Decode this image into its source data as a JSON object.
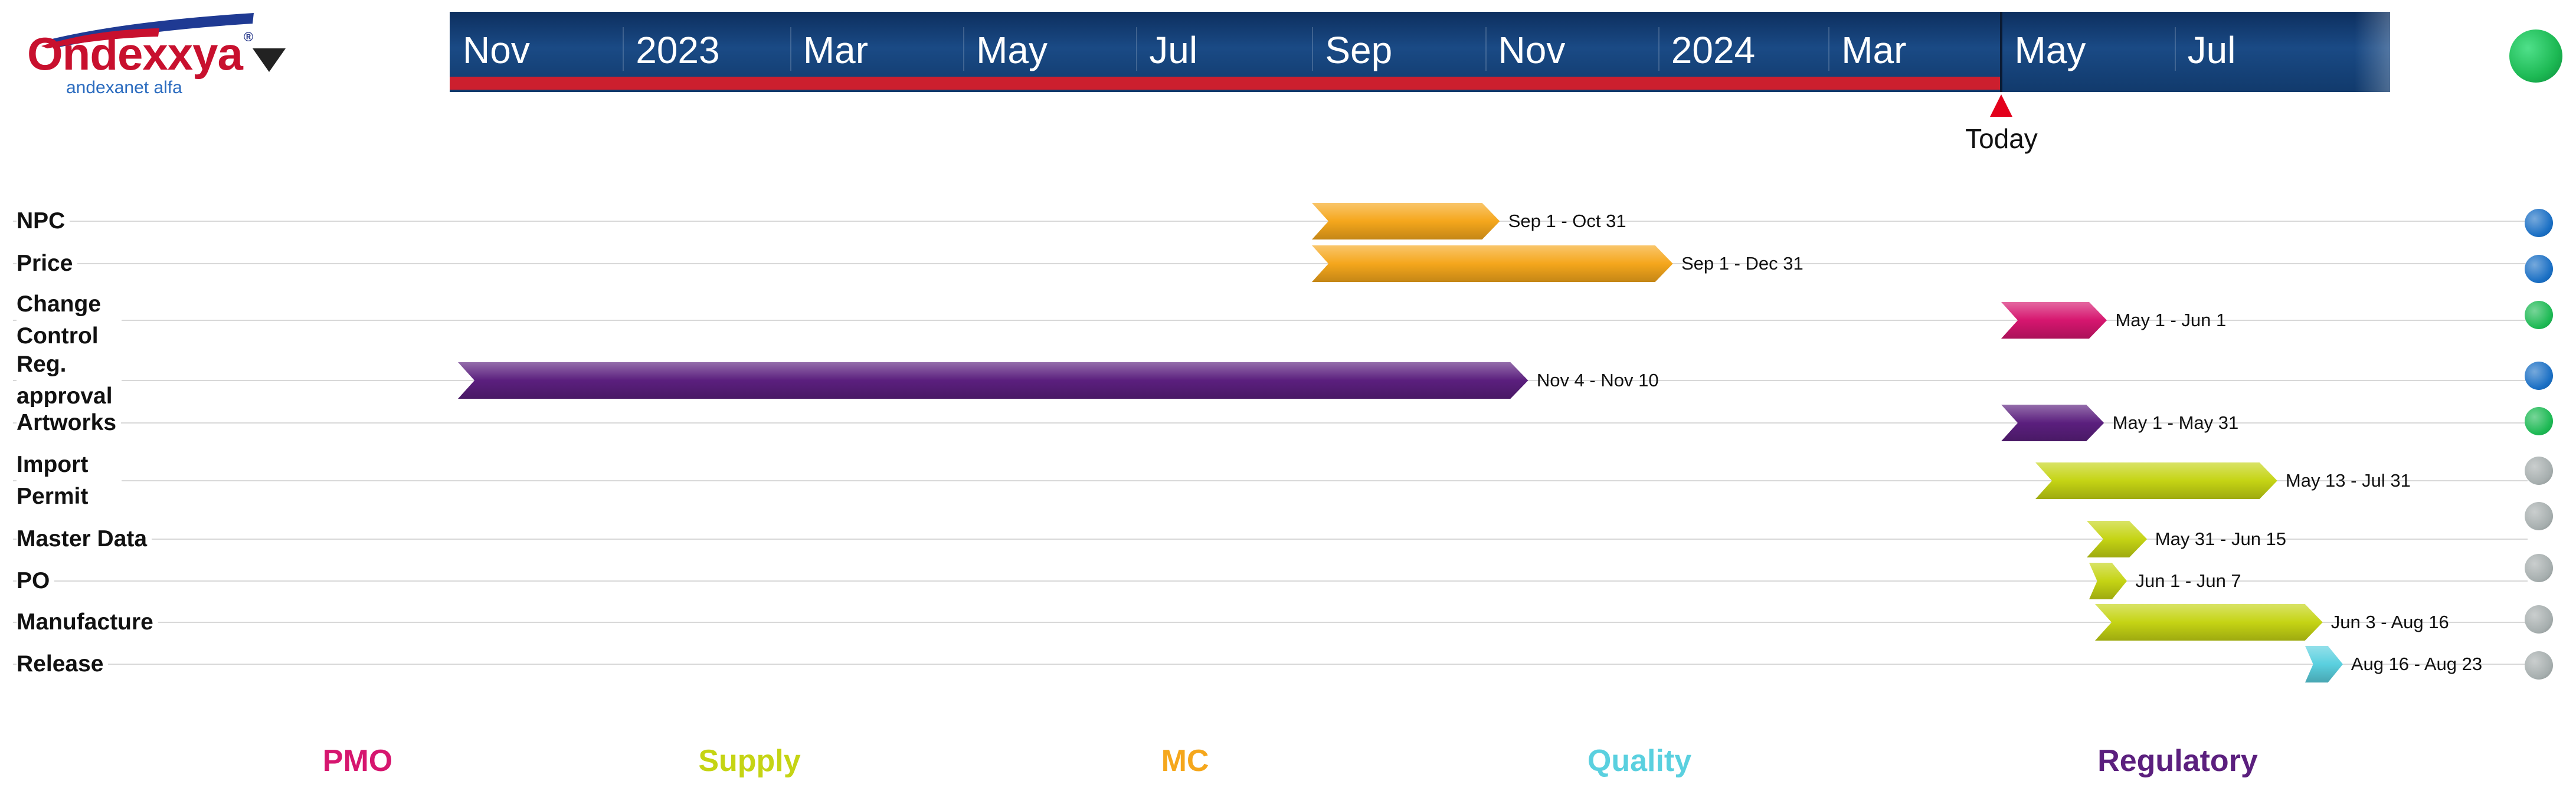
{
  "brand": {
    "name": "Ondexxya",
    "registered_mark": "®",
    "generic": "andexanet alfa"
  },
  "chart_data": {
    "type": "gantt",
    "timescale": {
      "labels": [
        "Nov",
        "2023",
        "Mar",
        "May",
        "Jul",
        "Sep",
        "Nov",
        "2024",
        "Mar",
        "May",
        "Jul"
      ],
      "start": "2022-11-01",
      "end": "2024-09-15"
    },
    "today": {
      "label": "Today",
      "date": "2024-05-01"
    },
    "overall_status": "#1db954",
    "tasks": [
      {
        "label": "NPC",
        "dates": "Sep 1 - Oct 31",
        "start": "2023-09-01",
        "end": "2023-10-31",
        "category": "MC",
        "status": "#1a6fc4"
      },
      {
        "label": "Price",
        "dates": "Sep 1 - Dec 31",
        "start": "2023-09-01",
        "end": "2023-12-31",
        "category": "MC",
        "status": "#1a6fc4"
      },
      {
        "label": "Change Control",
        "dates": "May 1 - Jun 1",
        "start": "2024-05-01",
        "end": "2024-06-01",
        "category": "PMO",
        "status": "#1db954"
      },
      {
        "label": "Reg. approval",
        "dates": "Nov 4 - Nov 10",
        "start": "2022-11-04",
        "end": "2023-11-10",
        "category": "Regulatory",
        "status": "#1a6fc4"
      },
      {
        "label": "Artworks",
        "dates": "May 1 - May 31",
        "start": "2024-05-01",
        "end": "2024-05-31",
        "category": "Regulatory",
        "status": "#1db954"
      },
      {
        "label": "Import Permit",
        "dates": "May 13 - Jul 31",
        "start": "2024-05-13",
        "end": "2024-07-31",
        "category": "Supply",
        "status": "#a6aeae"
      },
      {
        "label": "Master Data",
        "dates": "May 31 - Jun 15",
        "start": "2024-05-31",
        "end": "2024-06-15",
        "category": "Supply",
        "status": "#a6aeae"
      },
      {
        "label": "PO",
        "dates": "Jun 1 - Jun 7",
        "start": "2024-06-01",
        "end": "2024-06-07",
        "category": "Supply",
        "status": "#a6aeae"
      },
      {
        "label": "Manufacture",
        "dates": "Jun 3 - Aug 16",
        "start": "2024-06-03",
        "end": "2024-08-16",
        "category": "Supply",
        "status": "#a6aeae"
      },
      {
        "label": "Release",
        "dates": "Aug 16 - Aug 23",
        "start": "2024-08-16",
        "end": "2024-08-23",
        "category": "Quality",
        "status": "#a6aeae"
      }
    ],
    "extra_status_dot": "#a6aeae",
    "legend": [
      {
        "name": "PMO",
        "color": "#d6166f"
      },
      {
        "name": "Supply",
        "color": "#c5d414"
      },
      {
        "name": "MC",
        "color": "#f5a71c"
      },
      {
        "name": "Quality",
        "color": "#5ad0df"
      },
      {
        "name": "Regulatory",
        "color": "#5b1f7e"
      }
    ]
  }
}
